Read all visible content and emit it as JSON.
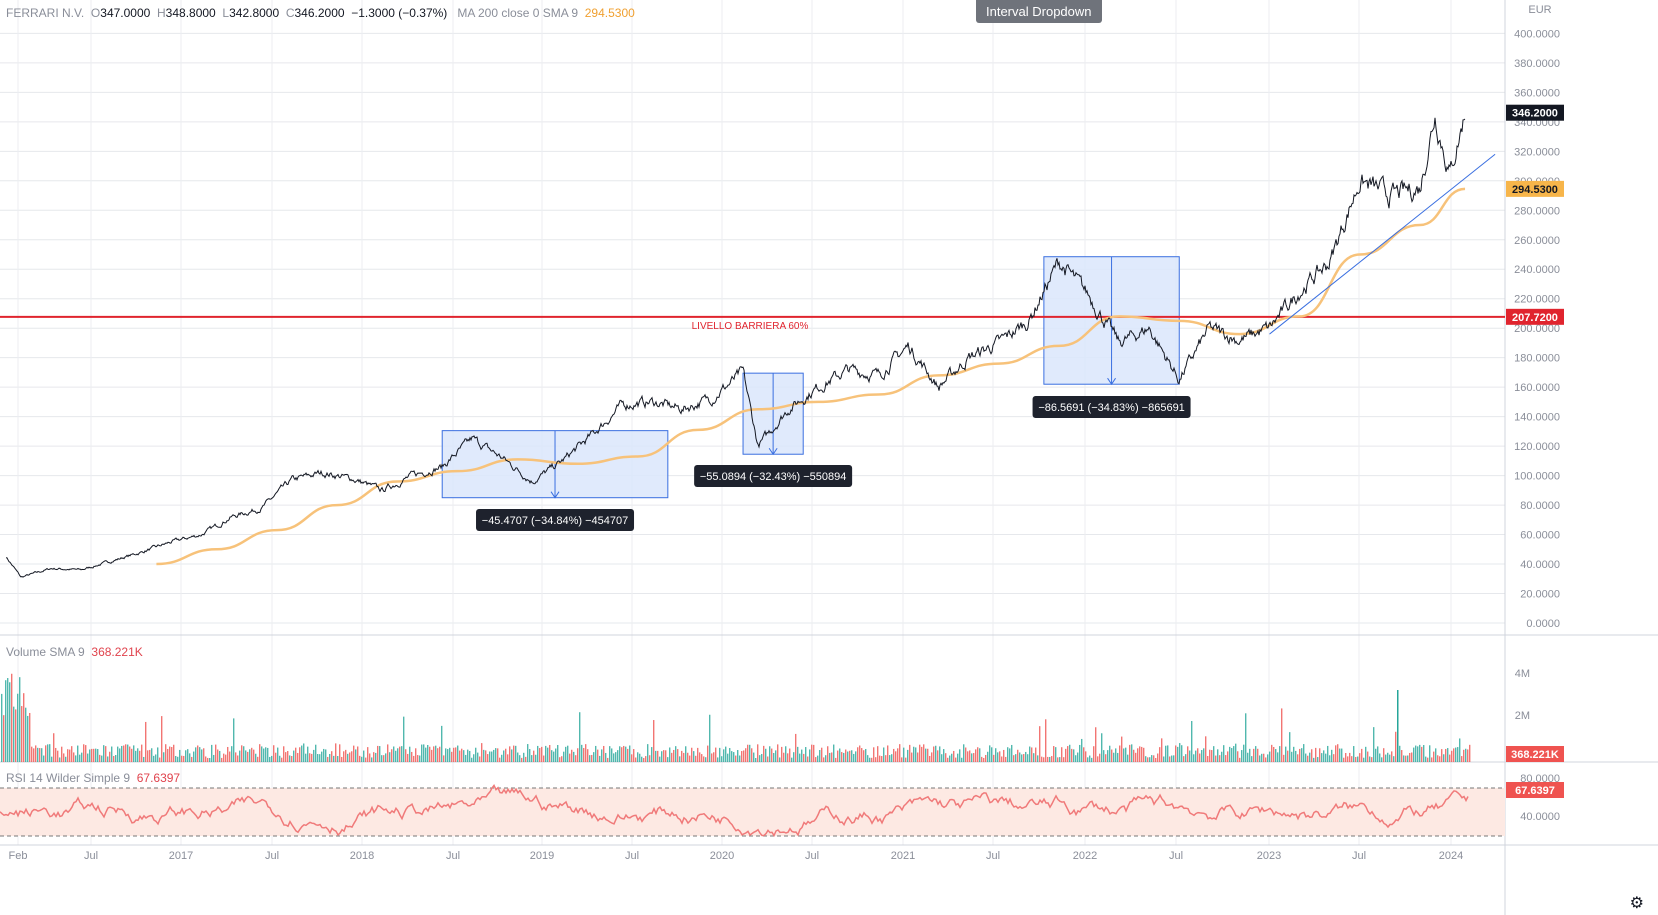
{
  "legend": {
    "symbol": "FERRARI N.V.",
    "o_label": "O",
    "o": "347.0000",
    "h_label": "H",
    "h": "348.8000",
    "l_label": "L",
    "l": "342.8000",
    "c_label": "C",
    "c": "346.2000",
    "change": "−1.3000 (−0.37%)",
    "ma_label": "MA 200 close 0 SMA 9",
    "ma_value": "294.5300"
  },
  "interval_button": "Interval Dropdown",
  "currency": "EUR",
  "price_axis": [
    "400.0000",
    "380.0000",
    "360.0000",
    "340.0000",
    "320.0000",
    "300.0000",
    "280.0000",
    "260.0000",
    "240.0000",
    "220.0000",
    "200.0000",
    "180.0000",
    "160.0000",
    "140.0000",
    "120.0000",
    "100.0000",
    "80.0000",
    "60.0000",
    "40.0000",
    "20.0000",
    "0.0000"
  ],
  "time_axis": [
    "Feb",
    "Jul",
    "2017",
    "Jul",
    "2018",
    "Jul",
    "2019",
    "Jul",
    "2020",
    "Jul",
    "2021",
    "Jul",
    "2022",
    "Jul",
    "2023",
    "Jul",
    "2024"
  ],
  "price_badges": {
    "last": "346.2000",
    "ma": "294.5300",
    "barrier": "207.7200"
  },
  "barrier_label": "LIVELLO BARRIERA 60%",
  "measurements": [
    "−45.4707 (−34.84%) −454707",
    "−55.0894 (−32.43%) −550894",
    "−86.5691 (−34.83%) −865691"
  ],
  "volume": {
    "label": "Volume SMA 9",
    "value": "368.221K",
    "axis": [
      "4M",
      "2M"
    ]
  },
  "rsi": {
    "label": "RSI 14 Wilder Simple 9",
    "value": "67.6397",
    "axis": [
      "80.0000",
      "40.0000"
    ]
  },
  "colors": {
    "price": "#131722",
    "ma": "#f7c27a",
    "barrier": "#e0242e",
    "trend": "#3a6fe0",
    "box_fill": "#dbe6fb",
    "box_stroke": "#3a6fe0",
    "vol_up": "#26a69a",
    "vol_down": "#ef5350",
    "rsi_line": "#f07a7a",
    "rsi_band": "#fde9e3"
  },
  "chart_data": {
    "type": "line",
    "title": "FERRARI N.V.",
    "ylim": [
      0,
      410
    ],
    "series": [
      {
        "name": "FERRARI N.V.",
        "x": [
          "2016-01",
          "2016-02",
          "2016-04",
          "2016-06",
          "2016-08",
          "2016-10",
          "2016-12",
          "2017-02",
          "2017-04",
          "2017-06",
          "2017-08",
          "2017-10",
          "2017-12",
          "2018-02",
          "2018-04",
          "2018-06",
          "2018-08",
          "2018-10",
          "2018-12",
          "2019-02",
          "2019-04",
          "2019-06",
          "2019-08",
          "2019-10",
          "2019-12",
          "2020-02",
          "2020-03",
          "2020-05",
          "2020-07",
          "2020-09",
          "2020-11",
          "2021-01",
          "2021-03",
          "2021-05",
          "2021-07",
          "2021-09",
          "2021-11",
          "2022-01",
          "2022-03",
          "2022-05",
          "2022-07",
          "2022-09",
          "2022-11",
          "2023-01",
          "2023-03",
          "2023-05",
          "2023-07",
          "2023-09",
          "2023-11",
          "2023-12",
          "2024-01",
          "2024-02"
        ],
        "values": [
          45,
          31,
          37,
          36,
          42,
          48,
          55,
          60,
          72,
          78,
          97,
          102,
          98,
          90,
          100,
          106,
          125,
          112,
          96,
          110,
          128,
          148,
          150,
          145,
          153,
          170,
          120,
          145,
          160,
          172,
          168,
          188,
          160,
          180,
          190,
          205,
          245,
          222,
          190,
          200,
          165,
          200,
          192,
          200,
          225,
          245,
          300,
          290,
          295,
          345,
          305,
          346
        ]
      },
      {
        "name": "MA 200 close 0 SMA 9",
        "x": [
          "2016-11",
          "2017-03",
          "2017-07",
          "2017-11",
          "2018-03",
          "2018-07",
          "2018-11",
          "2019-03",
          "2019-07",
          "2019-11",
          "2020-03",
          "2020-07",
          "2020-11",
          "2021-03",
          "2021-07",
          "2021-11",
          "2022-03",
          "2022-07",
          "2022-11",
          "2023-03",
          "2023-07",
          "2023-11",
          "2024-02"
        ],
        "values": [
          40,
          50,
          63,
          80,
          96,
          103,
          111,
          108,
          113,
          131,
          145,
          150,
          155,
          168,
          176,
          188,
          208,
          205,
          196,
          208,
          250,
          270,
          294.53
        ]
      }
    ]
  }
}
